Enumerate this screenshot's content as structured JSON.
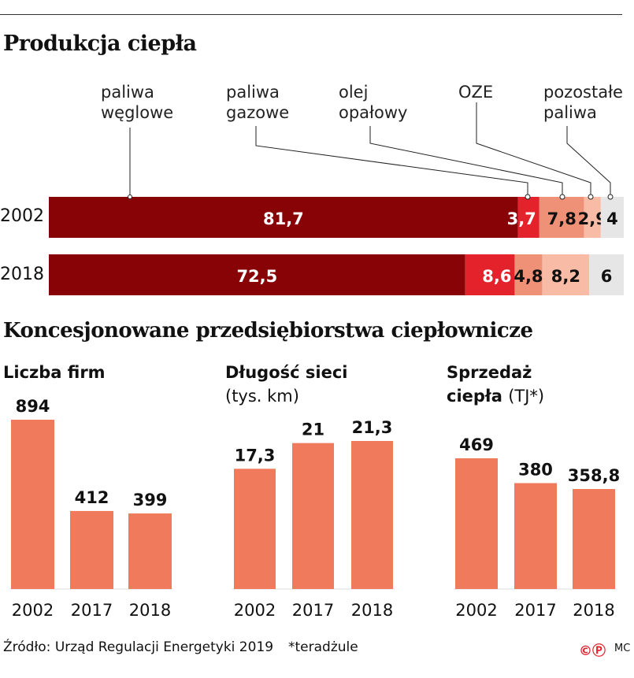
{
  "chart_data": [
    {
      "type": "bar",
      "orientation": "horizontal-stacked",
      "title": "Produkcja ciepła",
      "categories": [
        "2002",
        "2018"
      ],
      "series": [
        {
          "name": "paliwa węglowe",
          "values": [
            81.7,
            72.5
          ],
          "labels": [
            "81,7",
            "72,5"
          ],
          "color": "#870306"
        },
        {
          "name": "paliwa gazowe",
          "values": [
            3.7,
            8.6
          ],
          "labels": [
            "3,7",
            "8,6"
          ],
          "color": "#e4222b"
        },
        {
          "name": "olej opałowy",
          "values": [
            7.8,
            4.8
          ],
          "labels": [
            "7,8",
            "4,8"
          ],
          "color": "#ef9176"
        },
        {
          "name": "OZE",
          "values": [
            2.9,
            8.2
          ],
          "labels": [
            "2,9",
            "8,2"
          ],
          "color": "#f7bba6"
        },
        {
          "name": "pozostałe paliwa",
          "values": [
            4,
            6
          ],
          "labels": [
            "4",
            "6"
          ],
          "color": "#e6e6e6"
        }
      ],
      "legend_labels": [
        "paliwa\nwęglowe",
        "paliwa\ngazowe",
        "olej\nopałowy",
        "OZE",
        "pozostałe\npaliwa"
      ]
    },
    {
      "type": "bar",
      "title": "Liczba firm",
      "unit": "",
      "categories": [
        "2002",
        "2017",
        "2018"
      ],
      "values": [
        894,
        412,
        399
      ],
      "labels": [
        "894",
        "412",
        "399"
      ],
      "color": "#f07b5c"
    },
    {
      "type": "bar",
      "title": "Długość sieci",
      "unit": "(tys. km)",
      "categories": [
        "2002",
        "2017",
        "2018"
      ],
      "values": [
        17.3,
        21,
        21.3
      ],
      "labels": [
        "17,3",
        "21",
        "21,3"
      ],
      "color": "#f07b5c"
    },
    {
      "type": "bar",
      "title": "Sprzedaż\nciepła",
      "unit": "(TJ*)",
      "categories": [
        "2002",
        "2017",
        "2018"
      ],
      "values": [
        469,
        380,
        358.8
      ],
      "labels": [
        "469",
        "380",
        "358,8"
      ],
      "color": "#f07b5c"
    }
  ],
  "section_title": "Koncesjonowane przedsiębiorstwa ciepłownicze",
  "footer": {
    "source": "Źródło: Urząd Regulacji Energetyki 2019",
    "note": "*teradżule",
    "credit": "MC",
    "copyright_icon": "copyright-icon",
    "p_icon": "p-circle-icon"
  }
}
